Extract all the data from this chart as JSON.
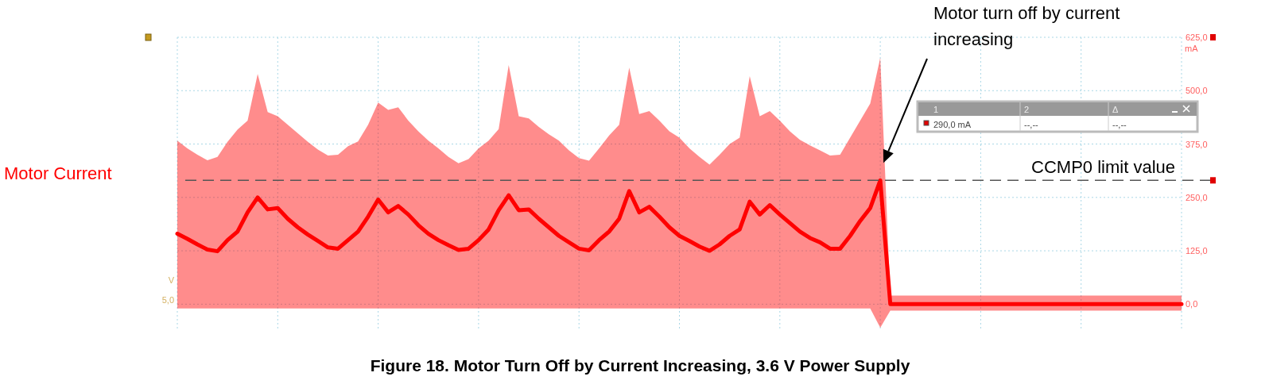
{
  "chart_data": {
    "type": "line",
    "title": "Figure 18. Motor Turn Off by Current Increasing, 3.6 V Power Supply",
    "ylabel": "mA",
    "categories": [
      null,
      null,
      null,
      null,
      null,
      null,
      null,
      null,
      null,
      null,
      null,
      null,
      null,
      null,
      null,
      null,
      null,
      null,
      null,
      null,
      null,
      null,
      null,
      null,
      null,
      null,
      null,
      null,
      null,
      null,
      null,
      null,
      null,
      null,
      null,
      null,
      null,
      null,
      null,
      null,
      null,
      null,
      null,
      null,
      null,
      null,
      null,
      null,
      null,
      null,
      null,
      null,
      null,
      null,
      null,
      null,
      null,
      null,
      null,
      null,
      null,
      null,
      null,
      null,
      null,
      null,
      null,
      null,
      null,
      null,
      null,
      null,
      null,
      null,
      null,
      null,
      null,
      null,
      null,
      null,
      null,
      null,
      null,
      null,
      null,
      null,
      null,
      null,
      null,
      null,
      null,
      null,
      null,
      null,
      null,
      null,
      null,
      null,
      null,
      null,
      null
    ],
    "ylim": [
      -62.5,
      625
    ],
    "yticks": [
      {
        "value": 0,
        "label": "0,0"
      },
      {
        "value": 125,
        "label": "125,0"
      },
      {
        "value": 250,
        "label": "250,0"
      },
      {
        "value": 375,
        "label": "375,0"
      },
      {
        "value": 500,
        "label": "500,0"
      },
      {
        "value": 625,
        "label": "625,0"
      }
    ],
    "tick_labels": "y",
    "grid": true,
    "series": [
      {
        "name": "Motor Current",
        "color": "#ff0000",
        "values": [
          165,
          153,
          140,
          128,
          124,
          150,
          170,
          215,
          250,
          222,
          225,
          200,
          180,
          163,
          148,
          133,
          130,
          150,
          170,
          205,
          245,
          215,
          230,
          210,
          185,
          165,
          150,
          138,
          127,
          130,
          150,
          175,
          220,
          255,
          220,
          222,
          200,
          180,
          160,
          145,
          130,
          126,
          150,
          170,
          200,
          265,
          215,
          228,
          205,
          180,
          160,
          148,
          135,
          125,
          140,
          160,
          175,
          240,
          210,
          232,
          210,
          190,
          170,
          155,
          145,
          130,
          130,
          160,
          195,
          225,
          290,
          0,
          0,
          0,
          0,
          0,
          0,
          0,
          0,
          0,
          0,
          0,
          0,
          0,
          0,
          0,
          0,
          0,
          0,
          0,
          0,
          0,
          0,
          0,
          0,
          0,
          0,
          0,
          0,
          0,
          0
        ],
        "lower": [
          -10,
          -10,
          -10,
          -10,
          -10,
          -10,
          -10,
          -10,
          -10,
          -10,
          -10,
          -10,
          -10,
          -10,
          -10,
          -10,
          -10,
          -10,
          -10,
          -10,
          -10,
          -10,
          -10,
          -10,
          -10,
          -10,
          -10,
          -10,
          -10,
          -10,
          -10,
          -10,
          -10,
          -10,
          -10,
          -10,
          -10,
          -10,
          -10,
          -10,
          -10,
          -10,
          -10,
          -10,
          -10,
          -10,
          -10,
          -10,
          -10,
          -10,
          -10,
          -10,
          -10,
          -10,
          -10,
          -10,
          -10,
          -10,
          -10,
          -10,
          -10,
          -10,
          -10,
          -10,
          -10,
          -10,
          -10,
          -10,
          -10,
          -10,
          -55,
          -15,
          -15,
          -15,
          -15,
          -15,
          -15,
          -15,
          -15,
          -15,
          -15,
          -15,
          -15,
          -15,
          -15,
          -15,
          -15,
          -15,
          -15,
          -15,
          -15,
          -15,
          -15,
          -15,
          -15,
          -15,
          -15,
          -15,
          -15,
          -15,
          -15
        ],
        "upper": [
          383,
          365,
          350,
          337,
          345,
          380,
          409,
          430,
          539,
          450,
          440,
          420,
          400,
          380,
          362,
          348,
          350,
          370,
          381,
          420,
          472,
          455,
          461,
          430,
          405,
          383,
          365,
          345,
          330,
          340,
          365,
          383,
          410,
          560,
          440,
          435,
          415,
          398,
          383,
          360,
          342,
          336,
          365,
          395,
          420,
          554,
          445,
          452,
          430,
          405,
          390,
          365,
          345,
          327,
          350,
          375,
          390,
          534,
          440,
          452,
          430,
          405,
          385,
          372,
          360,
          348,
          350,
          390,
          430,
          470,
          577,
          20,
          20,
          20,
          20,
          20,
          20,
          20,
          20,
          20,
          20,
          20,
          20,
          20,
          20,
          20,
          20,
          20,
          20,
          20,
          20,
          20,
          20,
          20,
          20,
          20,
          20,
          20,
          20,
          20,
          20
        ]
      }
    ],
    "ref_lines": [
      {
        "axis": "y",
        "value": 290,
        "label": "CCMP0 limit value",
        "color": "#555555",
        "line_style": "dashed"
      }
    ],
    "annotations": [
      "Motor turn off by current increasing",
      "1",
      "2",
      "Δ",
      "290,0 mA",
      "--,--",
      "--,--",
      "V",
      "5,0"
    ]
  }
}
